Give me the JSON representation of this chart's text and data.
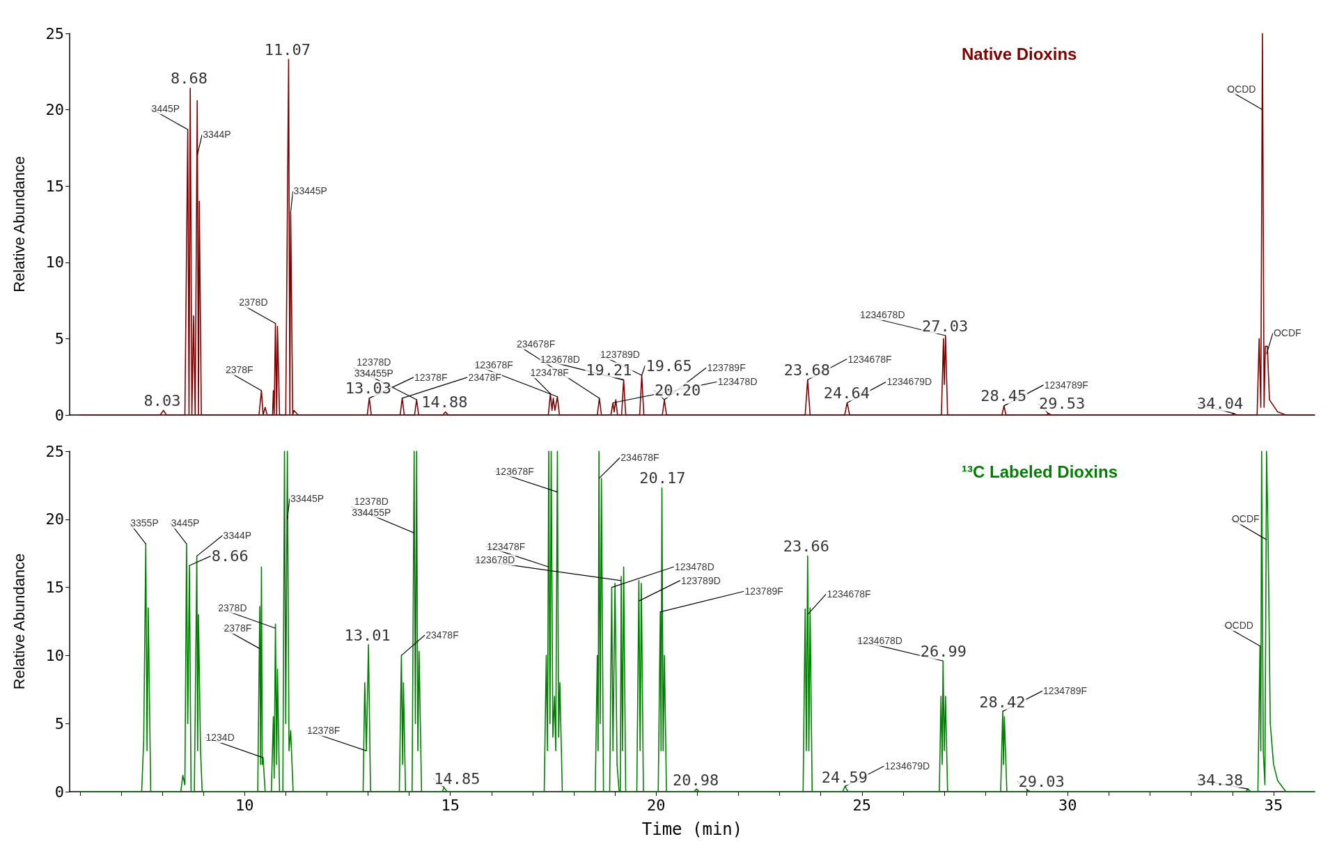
{
  "chart_data": [
    {
      "type": "line",
      "title": "Native Dioxins",
      "ylabel": "Relative Abundance",
      "color": "#800000",
      "tick_labels": "y",
      "xlim": [
        5.75,
        36
      ],
      "ylim": [
        0,
        25
      ],
      "yticks": [
        0,
        5,
        10,
        15,
        20,
        25
      ],
      "x": [
        6.0,
        7.95,
        8.03,
        8.1,
        8.55,
        8.62,
        8.65,
        8.68,
        8.72,
        8.76,
        8.8,
        8.85,
        8.88,
        8.9,
        8.95,
        10.35,
        10.41,
        10.45,
        10.5,
        10.55,
        10.68,
        10.7,
        10.72,
        10.75,
        10.78,
        10.8,
        10.85,
        11.0,
        11.07,
        11.1,
        11.12,
        11.17,
        11.2,
        11.3,
        12.98,
        13.03,
        13.08,
        13.78,
        13.83,
        13.88,
        14.13,
        14.18,
        14.23,
        14.82,
        14.88,
        14.95,
        17.38,
        17.43,
        17.47,
        17.5,
        17.54,
        17.6,
        17.65,
        18.57,
        18.62,
        18.67,
        18.9,
        18.95,
        18.98,
        19.02,
        19.06,
        19.16,
        19.21,
        19.26,
        19.6,
        19.65,
        19.7,
        20.15,
        20.2,
        20.25,
        23.62,
        23.68,
        23.74,
        24.58,
        24.64,
        24.7,
        26.93,
        26.98,
        27.0,
        27.03,
        27.08,
        28.4,
        28.45,
        28.5,
        29.48,
        29.53,
        29.6,
        33.98,
        34.04,
        34.1,
        34.6,
        34.65,
        34.69,
        34.73,
        34.77,
        34.8,
        34.85,
        34.9,
        35.0,
        35.1,
        35.3,
        36.0
      ],
      "values": [
        0,
        0,
        0.3,
        0,
        0,
        18.7,
        0,
        21.4,
        0,
        6.5,
        0,
        20.6,
        0,
        14,
        0,
        0,
        1.6,
        0,
        0.5,
        0,
        0,
        1.6,
        0,
        6.0,
        0,
        5.8,
        0,
        0,
        23.3,
        0,
        13.3,
        0,
        0.3,
        0,
        0,
        1.1,
        0,
        0,
        1.1,
        0,
        0,
        1.0,
        0,
        0,
        0.2,
        0,
        0,
        1.4,
        0.3,
        1.1,
        0.3,
        1.2,
        0,
        0,
        1.1,
        0,
        0,
        0.8,
        0.2,
        1.0,
        0,
        0,
        2.3,
        0,
        0,
        2.6,
        0,
        0,
        1.0,
        0,
        0,
        2.3,
        0,
        0,
        0.8,
        0,
        0,
        5.0,
        2,
        5.2,
        0,
        0,
        0.6,
        0,
        0,
        0.1,
        0,
        0,
        0.1,
        0,
        0,
        5.0,
        0.5,
        25,
        0.5,
        4.5,
        4.5,
        1,
        0.6,
        0.2,
        0,
        0
      ],
      "annotations": [
        {
          "text": "8.03",
          "x": 8.03,
          "y": 0.3
        },
        {
          "text": "8.68",
          "x": 8.68,
          "y": 21.4
        },
        {
          "text": "11.07",
          "x": 11.07,
          "y": 23.3
        },
        {
          "text": "13.03",
          "x": 13.03,
          "y": 1.1
        },
        {
          "text": "14.88",
          "x": 14.88,
          "y": 0.2
        },
        {
          "text": "19.21",
          "x": 19.21,
          "y": 2.3
        },
        {
          "text": "19.65",
          "x": 19.65,
          "y": 2.6
        },
        {
          "text": "20.20",
          "x": 20.2,
          "y": 1.0
        },
        {
          "text": "23.68",
          "x": 23.68,
          "y": 2.3
        },
        {
          "text": "24.64",
          "x": 24.64,
          "y": 0.8
        },
        {
          "text": "27.03",
          "x": 27.03,
          "y": 5.2
        },
        {
          "text": "28.45",
          "x": 28.45,
          "y": 0.6
        },
        {
          "text": "29.53",
          "x": 29.53,
          "y": 0.1
        },
        {
          "text": "34.04",
          "x": 34.04,
          "y": 0.1
        },
        {
          "text": "3445P",
          "x": 8.62,
          "y": 18.7
        },
        {
          "text": "3344P",
          "x": 8.85,
          "y": 17
        },
        {
          "text": "2378F",
          "x": 10.41,
          "y": 1.6
        },
        {
          "text": "2378D",
          "x": 10.75,
          "y": 6.0
        },
        {
          "text": "33445P",
          "x": 11.12,
          "y": 13.3
        },
        {
          "text": "12378F",
          "x": 13.03,
          "y": 1.1
        },
        {
          "text": "23478F",
          "x": 13.83,
          "y": 1.1
        },
        {
          "text": "12378D\n334455P",
          "x": 14.18,
          "y": 1.0
        },
        {
          "text": "123478F",
          "x": 17.43,
          "y": 1.4
        },
        {
          "text": "123678F",
          "x": 17.6,
          "y": 1.2
        },
        {
          "text": "234678F",
          "x": 18.62,
          "y": 1.1
        },
        {
          "text": "123478D",
          "x": 18.95,
          "y": 0.8
        },
        {
          "text": "123678D",
          "x": 19.21,
          "y": 2.3
        },
        {
          "text": "123789D",
          "x": 19.65,
          "y": 2.6
        },
        {
          "text": "123789F",
          "x": 20.2,
          "y": 1.0
        },
        {
          "text": "1234678F",
          "x": 23.68,
          "y": 2.3
        },
        {
          "text": "1234679D",
          "x": 24.64,
          "y": 0.8
        },
        {
          "text": "1234678D",
          "x": 27.03,
          "y": 5.2
        },
        {
          "text": "1234789F",
          "x": 28.45,
          "y": 0.6
        },
        {
          "text": "OCDD",
          "x": 34.73,
          "y": 20
        },
        {
          "text": "OCDF",
          "x": 34.83,
          "y": 4.0
        }
      ]
    },
    {
      "type": "line",
      "title": "¹³C Labeled Dioxins",
      "xlabel": "Time (min)",
      "ylabel": "Relative Abundance",
      "color": "#008000",
      "xlim": [
        5.75,
        36
      ],
      "ylim": [
        0,
        25
      ],
      "yticks": [
        0,
        5,
        10,
        15,
        20,
        25
      ],
      "xticks": [
        {
          "value": 6,
          "label": null
        },
        {
          "value": 7,
          "label": null
        },
        {
          "value": 8,
          "label": null
        },
        {
          "value": 9,
          "label": null
        },
        10,
        {
          "value": 11,
          "label": null
        },
        {
          "value": 12,
          "label": null
        },
        {
          "value": 13,
          "label": null
        },
        {
          "value": 14,
          "label": null
        },
        15,
        {
          "value": 16,
          "label": null
        },
        {
          "value": 17,
          "label": null
        },
        {
          "value": 18,
          "label": null
        },
        {
          "value": 19,
          "label": null
        },
        20,
        {
          "value": 21,
          "label": null
        },
        {
          "value": 22,
          "label": null
        },
        {
          "value": 23,
          "label": null
        },
        {
          "value": 24,
          "label": null
        },
        25,
        {
          "value": 26,
          "label": null
        },
        {
          "value": 27,
          "label": null
        },
        {
          "value": 28,
          "label": null
        },
        {
          "value": 29,
          "label": null
        },
        30,
        {
          "value": 31,
          "label": null
        },
        {
          "value": 32,
          "label": null
        },
        {
          "value": 33,
          "label": null
        },
        {
          "value": 34,
          "label": null
        },
        35
      ],
      "x": [
        6.0,
        7.5,
        7.55,
        7.6,
        7.63,
        7.66,
        7.72,
        8.45,
        8.5,
        8.55,
        8.59,
        8.62,
        8.66,
        8.7,
        8.78,
        8.84,
        8.86,
        8.88,
        8.93,
        8.97,
        10.32,
        10.37,
        10.39,
        10.41,
        10.43,
        10.45,
        10.5,
        10.65,
        10.7,
        10.72,
        10.75,
        10.78,
        10.8,
        10.85,
        10.93,
        10.97,
        11.0,
        11.04,
        11.08,
        11.12,
        11.18,
        12.88,
        12.92,
        12.96,
        13.01,
        13.06,
        13.76,
        13.81,
        13.84,
        13.86,
        13.91,
        14.07,
        14.12,
        14.15,
        14.18,
        14.21,
        14.24,
        14.3,
        14.8,
        14.85,
        14.92,
        17.28,
        17.33,
        17.36,
        17.39,
        17.42,
        17.45,
        17.49,
        17.53,
        17.56,
        17.6,
        17.63,
        17.66,
        17.72,
        18.52,
        18.57,
        18.59,
        18.61,
        18.64,
        18.67,
        18.72,
        18.87,
        18.92,
        18.95,
        19.0,
        19.05,
        19.1,
        19.13,
        19.15,
        19.18,
        19.21,
        19.26,
        19.53,
        19.58,
        19.61,
        19.64,
        19.69,
        20.05,
        20.1,
        20.12,
        20.14,
        20.17,
        20.2,
        20.25,
        20.92,
        20.98,
        21.05,
        23.57,
        23.62,
        23.65,
        23.68,
        23.71,
        23.74,
        23.79,
        24.53,
        24.59,
        24.66,
        26.88,
        26.92,
        26.95,
        26.97,
        27.0,
        27.03,
        27.08,
        28.37,
        28.42,
        28.44,
        28.46,
        28.52,
        28.98,
        29.03,
        29.1,
        34.32,
        34.38,
        34.44,
        34.62,
        34.67,
        34.69,
        34.71,
        34.75,
        34.79,
        34.83,
        34.87,
        34.92,
        35.0,
        35.1,
        35.3,
        36.0
      ],
      "values": [
        0,
        0,
        3.8,
        18.2,
        3,
        13.5,
        0,
        0,
        1.2,
        0.5,
        18.2,
        5,
        16.6,
        0,
        0,
        17.3,
        3,
        13.0,
        3.1,
        0,
        0,
        13.6,
        2,
        16.5,
        2,
        2.5,
        0,
        0,
        5.5,
        1,
        12.3,
        2,
        9,
        0,
        0,
        25,
        5,
        25,
        3,
        4.5,
        0,
        0,
        8,
        3,
        10.8,
        0,
        0,
        10,
        2,
        8,
        0,
        0,
        25,
        5,
        25,
        3,
        10.3,
        0,
        0,
        0.3,
        0,
        0,
        10,
        3,
        25,
        5,
        25,
        4,
        7,
        3,
        25,
        4,
        8,
        0,
        0,
        10,
        3,
        25,
        5,
        23,
        0,
        0,
        15,
        3,
        15.3,
        2,
        0,
        0,
        15.8,
        3,
        16.5,
        0,
        0,
        15.5,
        3,
        15.3,
        0,
        0,
        13.2,
        3,
        22.3,
        3,
        10,
        0,
        0,
        0.2,
        0,
        0,
        13.4,
        3,
        17.3,
        3,
        13.5,
        0,
        0,
        0.4,
        0,
        0,
        7,
        2,
        9.6,
        3,
        7,
        0,
        0,
        5.9,
        2,
        5.5,
        0,
        0,
        0.1,
        0,
        0,
        0.2,
        0,
        0,
        10.7,
        3,
        25,
        3,
        0.5,
        25,
        18,
        5,
        2,
        0.8,
        0,
        0
      ],
      "annotations": [
        {
          "text": "8.66",
          "x": 8.66,
          "y": 16.6
        },
        {
          "text": "13.01",
          "x": 13.01,
          "y": 10.8
        },
        {
          "text": "14.85",
          "x": 14.85,
          "y": 0.3
        },
        {
          "text": "20.17",
          "x": 20.17,
          "y": 22.3
        },
        {
          "text": "20.98",
          "x": 20.98,
          "y": 0.2
        },
        {
          "text": "23.66",
          "x": 23.66,
          "y": 17.3
        },
        {
          "text": "24.59",
          "x": 24.59,
          "y": 0.4
        },
        {
          "text": "26.99",
          "x": 26.99,
          "y": 9.6
        },
        {
          "text": "28.42",
          "x": 28.42,
          "y": 5.9
        },
        {
          "text": "29.03",
          "x": 29.03,
          "y": 0.1
        },
        {
          "text": "34.38",
          "x": 34.38,
          "y": 0.2
        },
        {
          "text": "3355P",
          "x": 7.6,
          "y": 18.2
        },
        {
          "text": "3445P",
          "x": 8.59,
          "y": 18.2
        },
        {
          "text": "3344P",
          "x": 8.84,
          "y": 17.3
        },
        {
          "text": "1234D",
          "x": 10.45,
          "y": 2.5
        },
        {
          "text": "2378F",
          "x": 10.37,
          "y": 10.5
        },
        {
          "text": "2378D",
          "x": 10.75,
          "y": 12.0
        },
        {
          "text": "33445P",
          "x": 11.04,
          "y": 20
        },
        {
          "text": "12378F",
          "x": 12.96,
          "y": 3
        },
        {
          "text": "23478F",
          "x": 13.81,
          "y": 10
        },
        {
          "text": "12378D\n334455P",
          "x": 14.12,
          "y": 19
        },
        {
          "text": "123478F",
          "x": 17.39,
          "y": 16.5
        },
        {
          "text": "123678F",
          "x": 17.6,
          "y": 22
        },
        {
          "text": "234678F",
          "x": 18.61,
          "y": 23
        },
        {
          "text": "123478D",
          "x": 18.92,
          "y": 15
        },
        {
          "text": "123678D",
          "x": 19.15,
          "y": 15.5
        },
        {
          "text": "123789D",
          "x": 19.58,
          "y": 14
        },
        {
          "text": "123789F",
          "x": 20.1,
          "y": 13.2
        },
        {
          "text": "1234678F",
          "x": 23.68,
          "y": 13
        },
        {
          "text": "1234679D",
          "x": 24.59,
          "y": 0.4
        },
        {
          "text": "1234678D",
          "x": 26.97,
          "y": 9.6
        },
        {
          "text": "1234789F",
          "x": 28.42,
          "y": 5.9
        },
        {
          "text": "OCDD",
          "x": 34.67,
          "y": 10.7
        },
        {
          "text": "OCDF",
          "x": 34.83,
          "y": 18.5
        }
      ]
    }
  ]
}
